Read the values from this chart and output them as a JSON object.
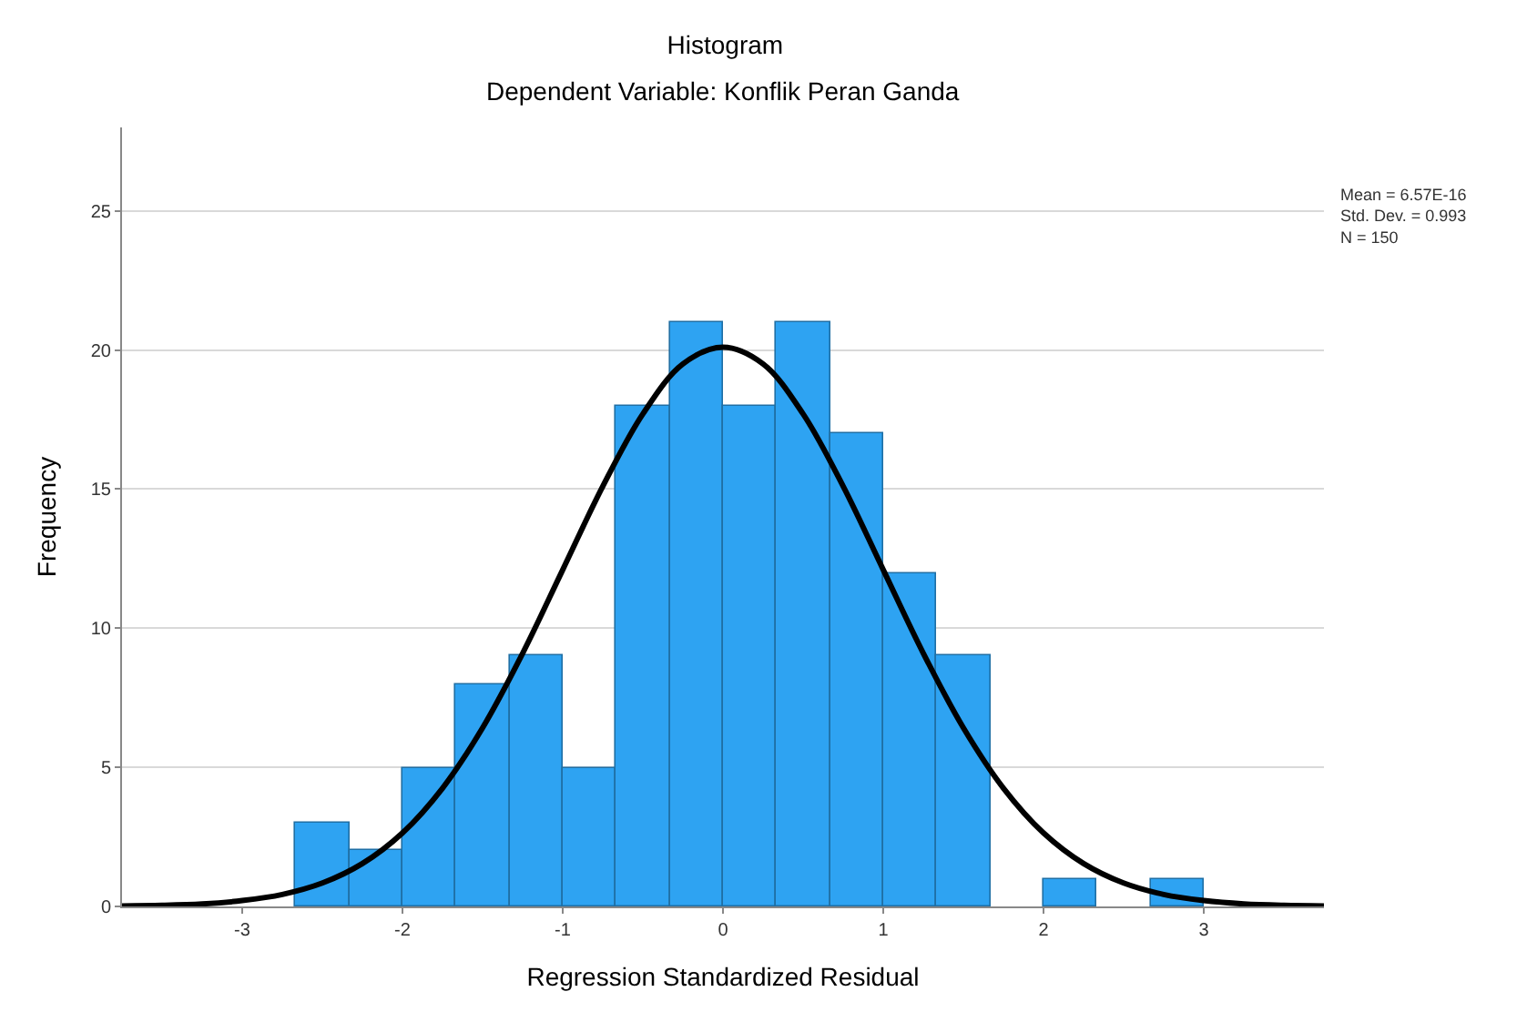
{
  "chart_data": {
    "type": "histogram",
    "title": "Histogram",
    "subtitle": "Dependent Variable: Konflik Peran Ganda",
    "xlabel": "Regression Standardized Residual",
    "ylabel": "Frequency",
    "bins": [
      -2.67,
      -2.33,
      -2,
      -1.67,
      -1.33,
      -1,
      -0.67,
      -0.33,
      0,
      0.33,
      0.67,
      1,
      1.33,
      1.67,
      2,
      2.33,
      2.67,
      3
    ],
    "values": [
      3,
      2,
      5,
      8,
      9,
      5,
      18,
      21,
      18,
      21,
      17,
      12,
      9,
      0,
      1,
      0,
      1
    ],
    "color": "#2ea3f2",
    "series": [
      {
        "type": "line",
        "color": "#000000",
        "x": [
          -3.75,
          -3.5,
          -3.25,
          -3,
          -2.75,
          -2.5,
          -2.25,
          -2,
          -1.75,
          -1.5,
          -1.25,
          -1,
          -0.75,
          -0.5,
          -0.25,
          0,
          0.25,
          0.5,
          0.75,
          1,
          1.25,
          1.5,
          1.75,
          2,
          2.25,
          2.5,
          2.75,
          3,
          3.25,
          3.5,
          3.75
        ],
        "values": [
          0.02,
          0.04,
          0.09,
          0.21,
          0.43,
          0.84,
          1.54,
          2.64,
          4.25,
          6.42,
          9.1,
          12.1,
          15.1,
          17.7,
          19.5,
          20.1,
          19.5,
          17.7,
          15.1,
          12.1,
          9.1,
          6.42,
          4.25,
          2.64,
          1.54,
          0.84,
          0.43,
          0.21,
          0.09,
          0.04,
          0.02
        ]
      }
    ],
    "xlim": [
      -3.75,
      3.75
    ],
    "ylim": [
      0,
      28
    ],
    "xticks": [
      -3,
      -2,
      -1,
      0,
      1,
      2,
      3
    ],
    "yticks": [
      0,
      5,
      10,
      15,
      20,
      25
    ],
    "grid": "y",
    "annotations": [
      "Mean = 6.57E-16\nStd. Dev. = 0.993\nN = 150"
    ]
  }
}
